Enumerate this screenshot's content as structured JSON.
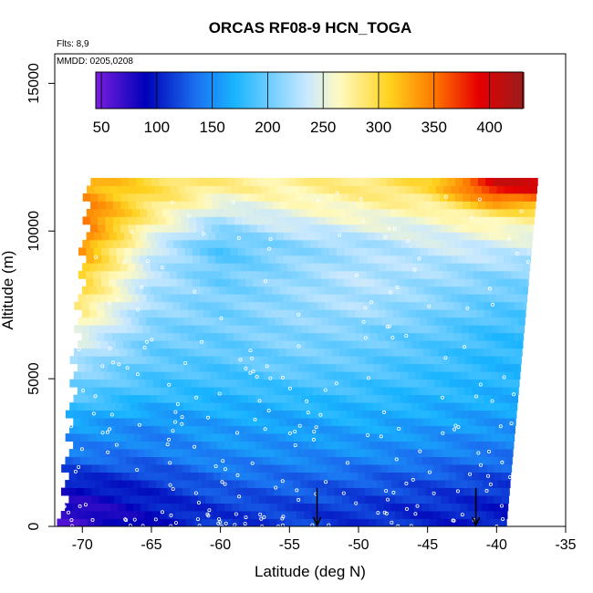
{
  "chart_data": {
    "type": "heatmap",
    "title": "ORCAS RF08-9 HCN_TOGA",
    "flights_note": "Flts: 8,9",
    "date_note": "MMDD: 0205,0208",
    "xlabel": "Latitude (deg N)",
    "ylabel": "Altitude (m)",
    "xlim": [
      -72,
      -35
    ],
    "ylim": [
      0,
      16000
    ],
    "x_ticks": [
      -70,
      -65,
      -60,
      -55,
      -50,
      -45,
      -40,
      -35
    ],
    "x_tick_labels": [
      "-70",
      "-65",
      "-60",
      "-55",
      "-50",
      "-45",
      "-40",
      "-35"
    ],
    "y_ticks": [
      0,
      5000,
      10000,
      15000
    ],
    "y_tick_labels": [
      "0",
      "5000",
      "10000",
      "15000"
    ],
    "colorbar": {
      "min": 45,
      "max": 430,
      "ticks": [
        50,
        100,
        150,
        200,
        250,
        300,
        350,
        400
      ],
      "tick_labels": [
        "50",
        "100",
        "150",
        "200",
        "250",
        "300",
        "350",
        "400"
      ],
      "colors": [
        "#7a1fe0",
        "#0000b8",
        "#1a6ff0",
        "#19b4ff",
        "#c8e8ff",
        "#fffac0",
        "#ffd21e",
        "#ff7800",
        "#e60000",
        "#9b1c1c"
      ],
      "color_positions": [
        45,
        90,
        135,
        170,
        235,
        265,
        310,
        350,
        390,
        430
      ]
    },
    "profile_levels_m": [
      11500,
      10500,
      9500,
      8500,
      7500,
      6500,
      5500,
      4500,
      3500,
      2500,
      1500,
      500
    ],
    "profile_latitudes": [
      -70,
      -65,
      -60,
      -55,
      -50,
      -45,
      -40
    ],
    "hcn_pptv": [
      [
        330,
        300,
        280,
        275,
        285,
        300,
        400
      ],
      [
        360,
        280,
        230,
        250,
        260,
        260,
        280
      ],
      [
        340,
        240,
        190,
        210,
        220,
        235,
        240
      ],
      [
        310,
        230,
        200,
        215,
        230,
        220,
        210
      ],
      [
        285,
        220,
        205,
        215,
        225,
        210,
        195
      ],
      [
        250,
        205,
        200,
        210,
        205,
        195,
        180
      ],
      [
        220,
        195,
        190,
        200,
        195,
        185,
        175
      ],
      [
        195,
        180,
        175,
        180,
        180,
        175,
        170
      ],
      [
        160,
        150,
        160,
        160,
        165,
        160,
        155
      ],
      [
        140,
        140,
        150,
        150,
        150,
        145,
        140
      ],
      [
        100,
        110,
        130,
        130,
        125,
        120,
        115
      ],
      [
        70,
        95,
        110,
        115,
        110,
        105,
        100
      ]
    ],
    "profile_markers_lat": [
      -53,
      -41.5
    ],
    "data_extent": {
      "lat_min_at_surface": -71.5,
      "lat_min_at_top": -69.5,
      "lat_max_at_surface": -39.3,
      "lat_max_at_top": -37,
      "alt_max_m": 11800
    }
  }
}
